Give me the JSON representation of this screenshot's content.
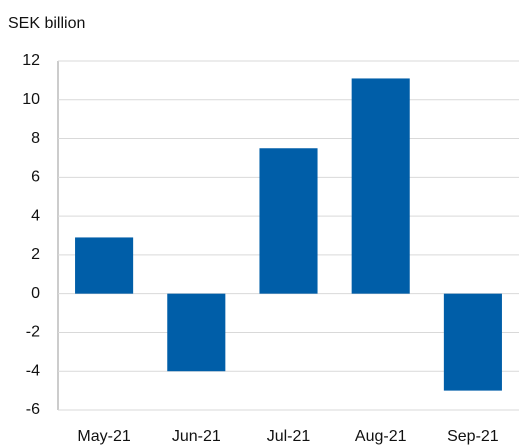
{
  "chart_data": {
    "type": "bar",
    "y_axis_label": "SEK billion",
    "categories": [
      "May-21",
      "Jun-21",
      "Jul-21",
      "Aug-21",
      "Sep-21"
    ],
    "values": [
      2.9,
      -4.0,
      7.5,
      11.1,
      -5.0
    ],
    "color": "#005ea8",
    "ylim": [
      -6,
      12
    ],
    "yticks": [
      -6,
      -4,
      -2,
      0,
      2,
      4,
      6,
      8,
      10,
      12
    ],
    "grid": true
  }
}
